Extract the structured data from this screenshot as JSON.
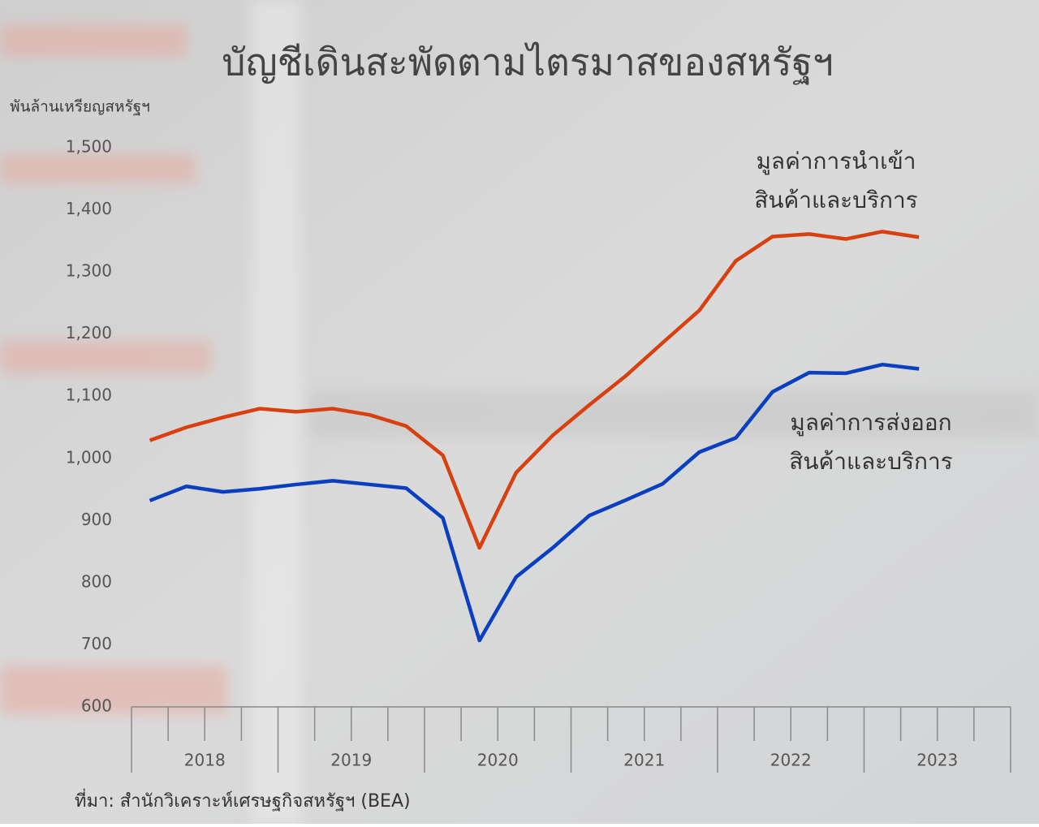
{
  "chart_data": {
    "type": "line",
    "title": "บัญชีเดินสะพัดตามไตรมาสของสหรัฐฯ",
    "y_label": "พันล้านเหรียญสหรัฐฯ",
    "source": "ที่มา: สำนักวิเคราะห์เศรษฐกิจสหรัฐฯ (BEA)",
    "categories": [
      "2018",
      null,
      null,
      null,
      "2019",
      null,
      null,
      null,
      "2020",
      null,
      null,
      null,
      "2021",
      null,
      null,
      null,
      "2022",
      null,
      null,
      null,
      "2023",
      null,
      null,
      null
    ],
    "series": [
      {
        "name": "มูลค่าการนำเข้า\nสินค้าและบริการ",
        "color": "#d94010",
        "values": [
          1029,
          1050,
          1066,
          1080,
          1075,
          1080,
          1070,
          1052,
          1005,
          856,
          977,
          1037,
          1086,
          1133,
          1186,
          1238,
          1318,
          1357,
          1361,
          1353,
          1365,
          1356,
          null,
          null
        ]
      },
      {
        "name": "มูลค่าการส่งออก\nสินค้าและบริการ",
        "color": "#0a3fbf",
        "values": [
          932,
          955,
          946,
          951,
          958,
          964,
          958,
          952,
          904,
          707,
          809,
          856,
          908,
          933,
          959,
          1010,
          1033,
          1107,
          1138,
          1137,
          1151,
          1144,
          null,
          null
        ]
      }
    ],
    "ylim": [
      600,
      1500
    ],
    "yticks": [
      600,
      700,
      800,
      900,
      {
        "value": 1000,
        "label": "1,000"
      },
      {
        "value": 1100,
        "label": "1,100"
      },
      {
        "value": 1200,
        "label": "1,200"
      },
      {
        "value": 1300,
        "label": "1,300"
      },
      {
        "value": 1400,
        "label": "1,400"
      },
      {
        "value": 1500,
        "label": "1,500"
      }
    ]
  }
}
